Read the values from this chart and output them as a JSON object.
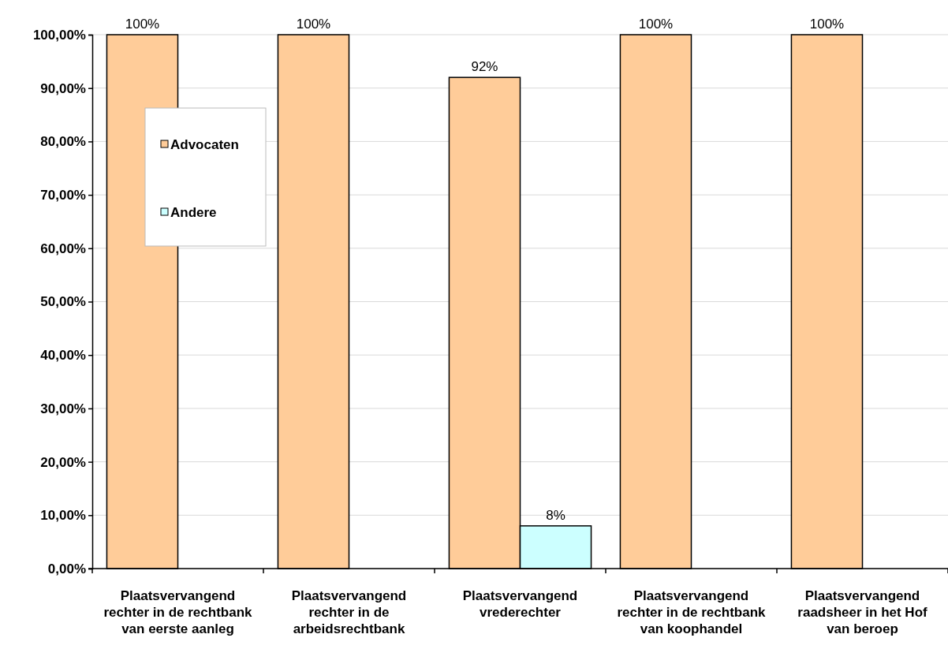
{
  "chart_data": {
    "type": "bar",
    "categories": [
      "Plaatsvervangend rechter in de rechtbank van eerste aanleg",
      "Plaatsvervangend rechter in de arbeidsrechtbank",
      "Plaatsvervangend vrederechter",
      "Plaatsvervangend rechter in de rechtbank van koophandel",
      "Plaatsvervangend raadsheer in het Hof van beroep"
    ],
    "series": [
      {
        "name": "Advocaten",
        "color": "#ffcc99",
        "values": [
          100,
          100,
          92,
          100,
          100
        ],
        "value_labels": [
          "100%",
          "100%",
          "92%",
          "100%",
          "100%"
        ]
      },
      {
        "name": "Andere",
        "color": "#ccffff",
        "values": [
          null,
          null,
          8,
          null,
          null
        ],
        "value_labels": [
          null,
          null,
          "8%",
          null,
          null
        ]
      }
    ],
    "ylim": [
      0,
      100
    ],
    "yticks": [
      {
        "value": 0,
        "label": "0,00%"
      },
      {
        "value": 10,
        "label": "10,00%"
      },
      {
        "value": 20,
        "label": "20,00%"
      },
      {
        "value": 30,
        "label": "30,00%"
      },
      {
        "value": 40,
        "label": "40,00%"
      },
      {
        "value": 50,
        "label": "50,00%"
      },
      {
        "value": 60,
        "label": "60,00%"
      },
      {
        "value": 70,
        "label": "70,00%"
      },
      {
        "value": 80,
        "label": "80,00%"
      },
      {
        "value": 90,
        "label": "90,00%"
      },
      {
        "value": 100,
        "label": "100,00%"
      }
    ],
    "grid": "y",
    "legend": "top left"
  }
}
